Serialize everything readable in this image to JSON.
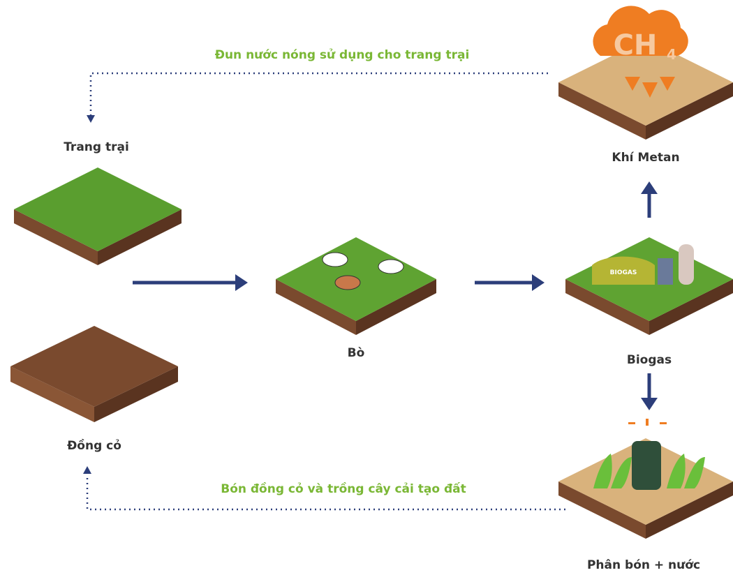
{
  "top_caption": "Đun nước nóng sử dụng cho trang trại",
  "bottom_caption": "Bón đồng cỏ và trồng cây cải tạo đất",
  "nodes": [
    {
      "label": "Trang trại"
    },
    {
      "label": "Đồng cỏ"
    },
    {
      "label": "Bò"
    },
    {
      "label": "Biogas"
    },
    {
      "label": "Khí Metan"
    },
    {
      "label": "Phân bón + nước"
    }
  ],
  "icon_labels": {
    "methane": "CH",
    "methane_sub": "4",
    "tank": "BIOGAS"
  }
}
